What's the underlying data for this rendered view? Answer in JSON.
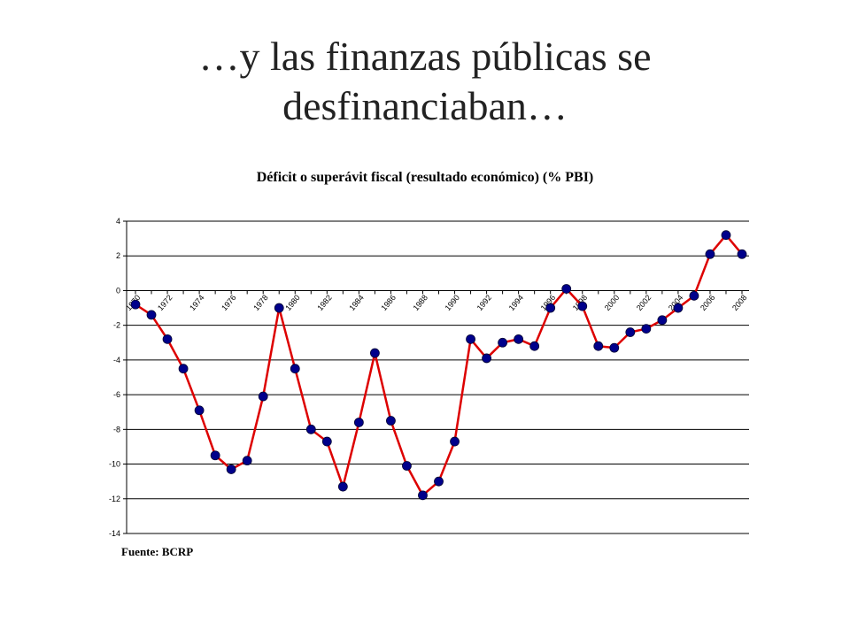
{
  "slide": {
    "title_line1": "…y las finanzas públicas se",
    "title_line2": "desfinanciaban…"
  },
  "source": "Fuente: BCRP",
  "colors": {
    "line": "#dd0000",
    "marker": "#00008b",
    "grid": "#000000"
  },
  "chart_data": {
    "type": "line",
    "title": "Déficit o superávit fiscal (resultado económico) (% PBI)",
    "xlabel": "",
    "ylabel": "",
    "ylim": [
      -14,
      4
    ],
    "yticks": [
      4,
      2,
      0,
      -2,
      -4,
      -6,
      -8,
      -10,
      -12,
      -14
    ],
    "grid": true,
    "legend": "none",
    "xticks": [
      "1970",
      "1972",
      "1974",
      "1976",
      "1978",
      "1980",
      "1982",
      "1984",
      "1986",
      "1988",
      "1990",
      "1992",
      "1994",
      "1996",
      "1998",
      "2000",
      "2002",
      "2004",
      "2006",
      "2008"
    ],
    "x": [
      1970,
      1971,
      1972,
      1973,
      1974,
      1975,
      1976,
      1977,
      1978,
      1979,
      1980,
      1981,
      1982,
      1983,
      1984,
      1985,
      1986,
      1987,
      1988,
      1989,
      1990,
      1991,
      1992,
      1993,
      1994,
      1995,
      1996,
      1997,
      1998,
      1999,
      2000,
      2001,
      2002,
      2003,
      2004,
      2005,
      2006,
      2007,
      2008
    ],
    "series": [
      {
        "values": [
          -0.8,
          -1.4,
          -2.8,
          -4.5,
          -6.9,
          -9.5,
          -10.3,
          -9.8,
          -6.1,
          -1.0,
          -4.5,
          -8.0,
          -8.7,
          -11.3,
          -7.6,
          -3.6,
          -7.5,
          -10.1,
          -11.8,
          -11.0,
          -8.7,
          -2.8,
          -3.9,
          -3.0,
          -2.8,
          -3.2,
          -1.0,
          0.1,
          -0.9,
          -3.2,
          -3.3,
          -2.4,
          -2.2,
          -1.7,
          -1.0,
          -0.3,
          2.1,
          3.2,
          2.1
        ]
      }
    ]
  }
}
